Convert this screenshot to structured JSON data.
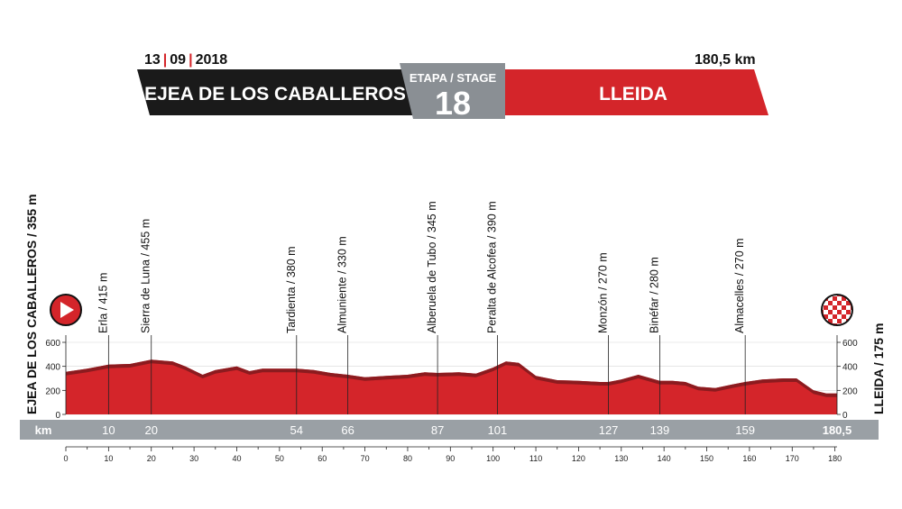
{
  "header": {
    "date_day": "13",
    "date_month": "09",
    "date_year": "2018",
    "distance": "180,5 km",
    "start_city": "EJEA DE LOS CABALLEROS",
    "finish_city": "LLEIDA",
    "stage_label": "ETAPA / STAGE",
    "stage_number": "18"
  },
  "colors": {
    "profile_red": "#d4252a",
    "profile_dark": "#8c1b1f",
    "start_banner": "#1a1a1a",
    "finish_banner": "#d4252a",
    "stage_box": "#8a8f94",
    "km_bar": "#9aa0a5"
  },
  "chart_data": {
    "type": "area",
    "title": "",
    "start_label": "EJEA DE LOS CABALLEROS / 355 m",
    "finish_label": "LLEIDA / 175 m",
    "xlabel": "km",
    "xlim": [
      0,
      180.5
    ],
    "ylim": [
      0,
      800
    ],
    "y_ticks": [
      "0",
      "200",
      "400",
      "600"
    ],
    "x_ticks": [
      "0",
      "10",
      "20",
      "30",
      "40",
      "50",
      "60",
      "70",
      "80",
      "90",
      "100",
      "110",
      "120",
      "130",
      "140",
      "150",
      "160",
      "170",
      "180"
    ],
    "profile": {
      "x": [
        0,
        5,
        10,
        15,
        20,
        25,
        28,
        32,
        35,
        40,
        43,
        46,
        50,
        54,
        58,
        62,
        66,
        70,
        75,
        80,
        84,
        87,
        92,
        96,
        100,
        103,
        106,
        110,
        115,
        120,
        125,
        127,
        130,
        134,
        137,
        139,
        142,
        145,
        148,
        152,
        156,
        159,
        163,
        168,
        171,
        175,
        178,
        180.5
      ],
      "elevation": [
        355,
        380,
        415,
        420,
        455,
        440,
        400,
        330,
        370,
        400,
        360,
        380,
        380,
        380,
        370,
        345,
        330,
        310,
        320,
        330,
        350,
        345,
        350,
        340,
        390,
        440,
        430,
        320,
        285,
        280,
        270,
        270,
        290,
        330,
        300,
        280,
        280,
        270,
        230,
        220,
        250,
        270,
        290,
        300,
        300,
        200,
        175,
        175
      ]
    },
    "waypoints": [
      {
        "km": 10,
        "label": "Erla / 415 m"
      },
      {
        "km": 20,
        "label": "Sierra de Luna / 455 m"
      },
      {
        "km": 54,
        "label": "Tardienta / 380 m"
      },
      {
        "km": 66,
        "label": "Almuniente / 330 m"
      },
      {
        "km": 87,
        "label": "Alberuela de Tubo / 345 m"
      },
      {
        "km": 101,
        "label": "Peralta de Alcofea / 390 m"
      },
      {
        "km": 127,
        "label": "Monzón / 270 m"
      },
      {
        "km": 139,
        "label": "Binéfar / 280 m"
      },
      {
        "km": 159,
        "label": "Almacelles / 270 m"
      }
    ],
    "km_bar_labels": [
      {
        "km": 10,
        "text": "10"
      },
      {
        "km": 20,
        "text": "20"
      },
      {
        "km": 54,
        "text": "54"
      },
      {
        "km": 66,
        "text": "66"
      },
      {
        "km": 87,
        "text": "87"
      },
      {
        "km": 101,
        "text": "101"
      },
      {
        "km": 127,
        "text": "127"
      },
      {
        "km": 139,
        "text": "139"
      },
      {
        "km": 159,
        "text": "159"
      },
      {
        "km": 180.5,
        "text": "180,5"
      }
    ]
  }
}
